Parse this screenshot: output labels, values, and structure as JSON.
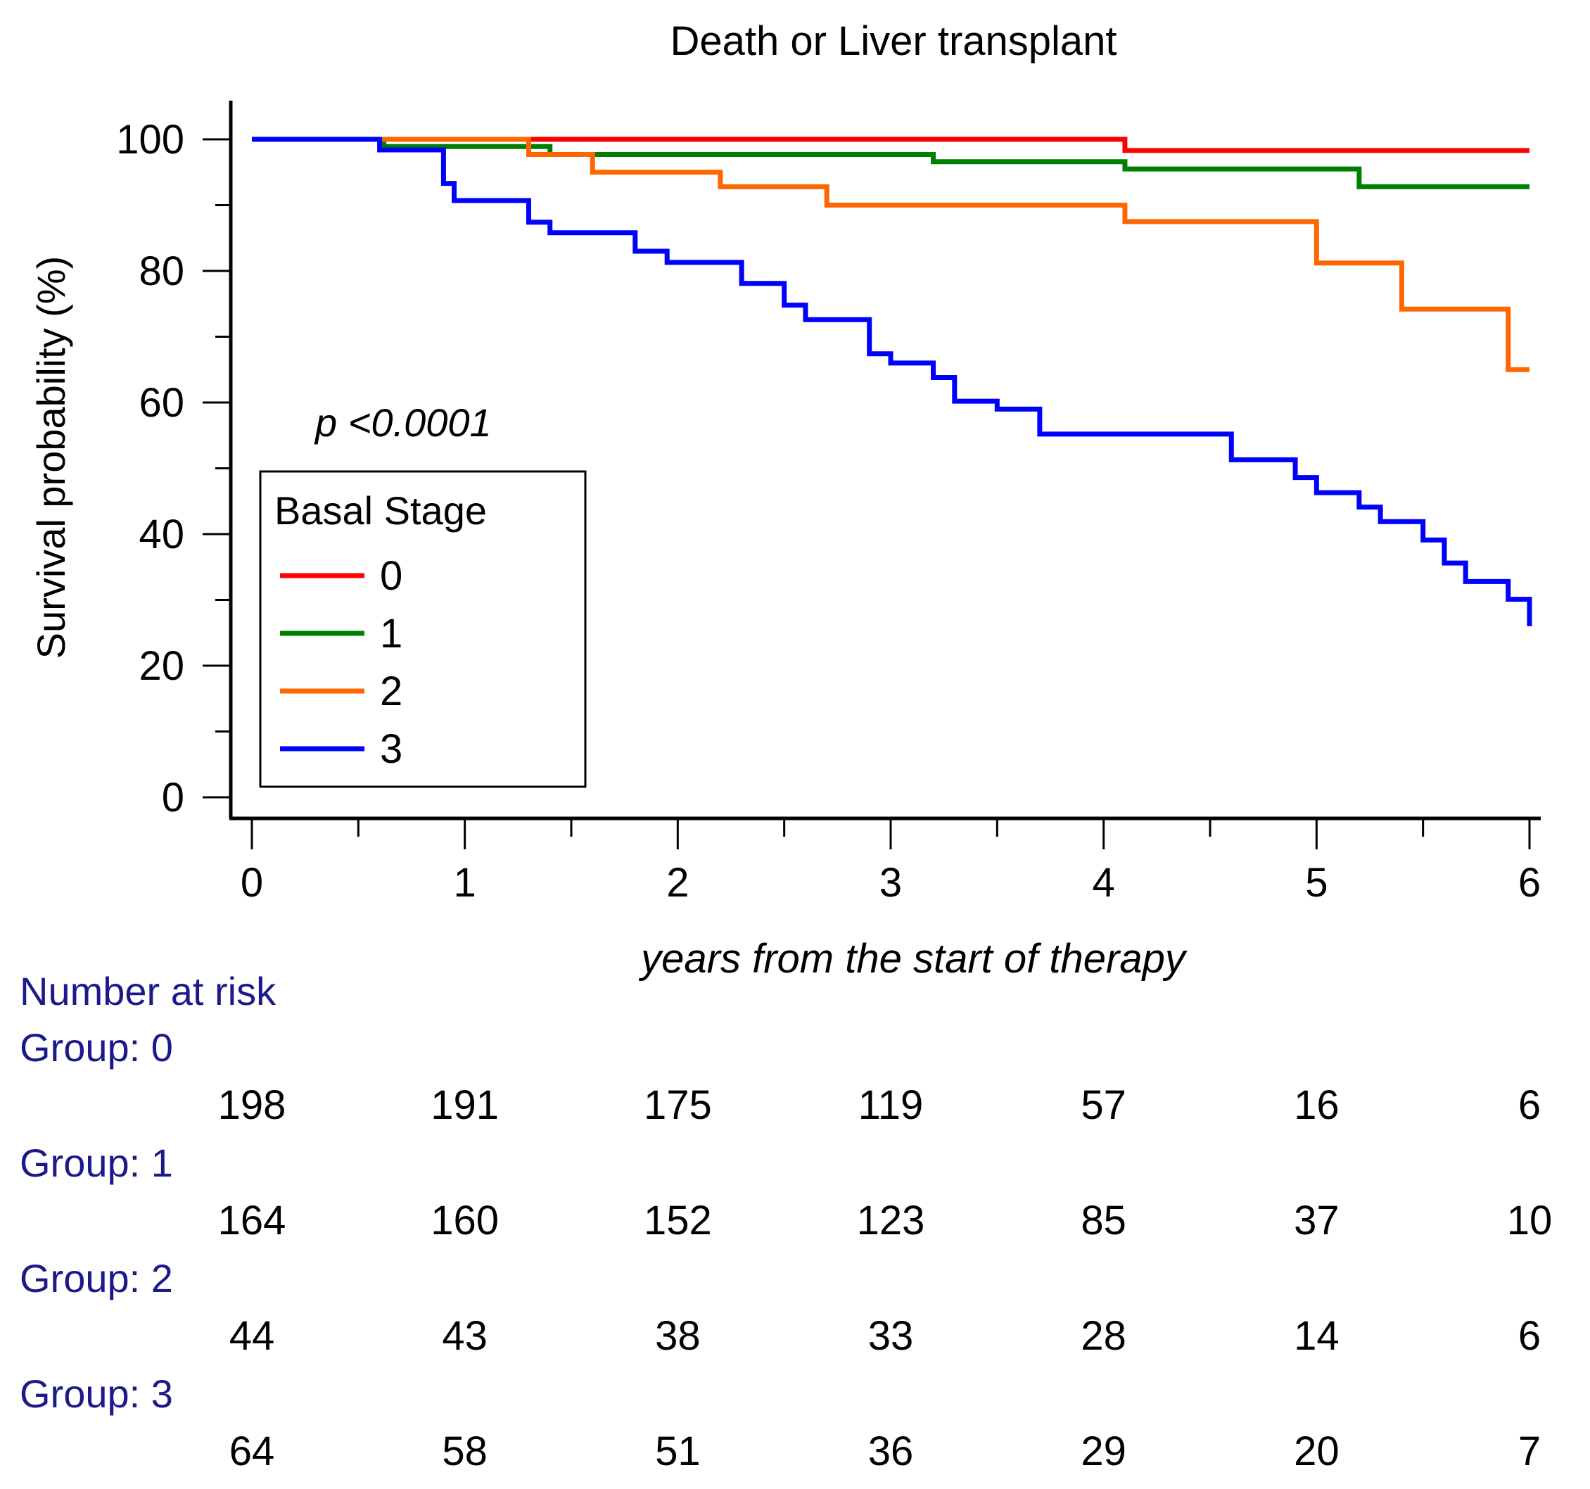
{
  "chart_data": {
    "type": "line",
    "subtype": "kaplan-meier step",
    "title": "Death or Liver transplant",
    "xlabel": "years from the start of therapy",
    "ylabel": "Survival probability (%)",
    "xlim": [
      0,
      6
    ],
    "ylim": [
      0,
      100
    ],
    "x_ticks": [
      "0",
      "1",
      "2",
      "3",
      "4",
      "5",
      "6"
    ],
    "y_ticks": [
      "0",
      "20",
      "40",
      "60",
      "80",
      "100"
    ],
    "annotation": "p <0.0001",
    "legend": {
      "title": "Basal Stage",
      "position": "lower-left"
    },
    "series": [
      {
        "name": "0",
        "color": "#ff0000",
        "steps": [
          [
            0,
            100
          ],
          [
            4.1,
            98.3
          ],
          [
            6,
            98.3
          ]
        ]
      },
      {
        "name": "1",
        "color": "#008000",
        "steps": [
          [
            0,
            100
          ],
          [
            0.62,
            98.9
          ],
          [
            1.4,
            97.7
          ],
          [
            3.2,
            96.6
          ],
          [
            4.1,
            95.5
          ],
          [
            5.2,
            92.8
          ],
          [
            6,
            92.8
          ]
        ]
      },
      {
        "name": "2",
        "color": "#ff6600",
        "steps": [
          [
            0,
            100
          ],
          [
            1.3,
            97.7
          ],
          [
            1.6,
            95.0
          ],
          [
            2.2,
            92.8
          ],
          [
            2.7,
            90.0
          ],
          [
            4.1,
            87.5
          ],
          [
            4.8,
            87.5
          ],
          [
            5.0,
            81.2
          ],
          [
            5.4,
            74.2
          ],
          [
            5.9,
            65.0
          ],
          [
            6,
            65.0
          ]
        ]
      },
      {
        "name": "3",
        "color": "#0000ff",
        "steps": [
          [
            0,
            100
          ],
          [
            0.6,
            98.4
          ],
          [
            0.9,
            93.3
          ],
          [
            0.95,
            90.7
          ],
          [
            1.3,
            87.4
          ],
          [
            1.4,
            85.8
          ],
          [
            1.8,
            83.0
          ],
          [
            1.95,
            81.3
          ],
          [
            2.3,
            78.1
          ],
          [
            2.5,
            74.8
          ],
          [
            2.6,
            72.6
          ],
          [
            2.9,
            67.4
          ],
          [
            3.0,
            66.0
          ],
          [
            3.2,
            63.8
          ],
          [
            3.3,
            60.2
          ],
          [
            3.5,
            59.0
          ],
          [
            3.7,
            55.2
          ],
          [
            4.6,
            51.3
          ],
          [
            4.9,
            48.6
          ],
          [
            5.0,
            46.3
          ],
          [
            5.2,
            44.1
          ],
          [
            5.3,
            41.9
          ],
          [
            5.5,
            39.1
          ],
          [
            5.6,
            35.6
          ],
          [
            5.7,
            32.8
          ],
          [
            5.9,
            30.1
          ],
          [
            6,
            26.0
          ]
        ]
      }
    ],
    "risk_table": {
      "title": "Number at risk",
      "times": [
        0,
        1,
        2,
        3,
        4,
        5,
        6
      ],
      "groups": [
        {
          "label": "Group: 0",
          "counts": [
            "198",
            "191",
            "175",
            "119",
            "57",
            "16",
            "6"
          ]
        },
        {
          "label": "Group: 1",
          "counts": [
            "164",
            "160",
            "152",
            "123",
            "85",
            "37",
            "10"
          ]
        },
        {
          "label": "Group: 2",
          "counts": [
            "44",
            "43",
            "38",
            "33",
            "28",
            "14",
            "6"
          ]
        },
        {
          "label": "Group: 3",
          "counts": [
            "64",
            "58",
            "51",
            "36",
            "29",
            "20",
            "7"
          ]
        }
      ]
    }
  }
}
